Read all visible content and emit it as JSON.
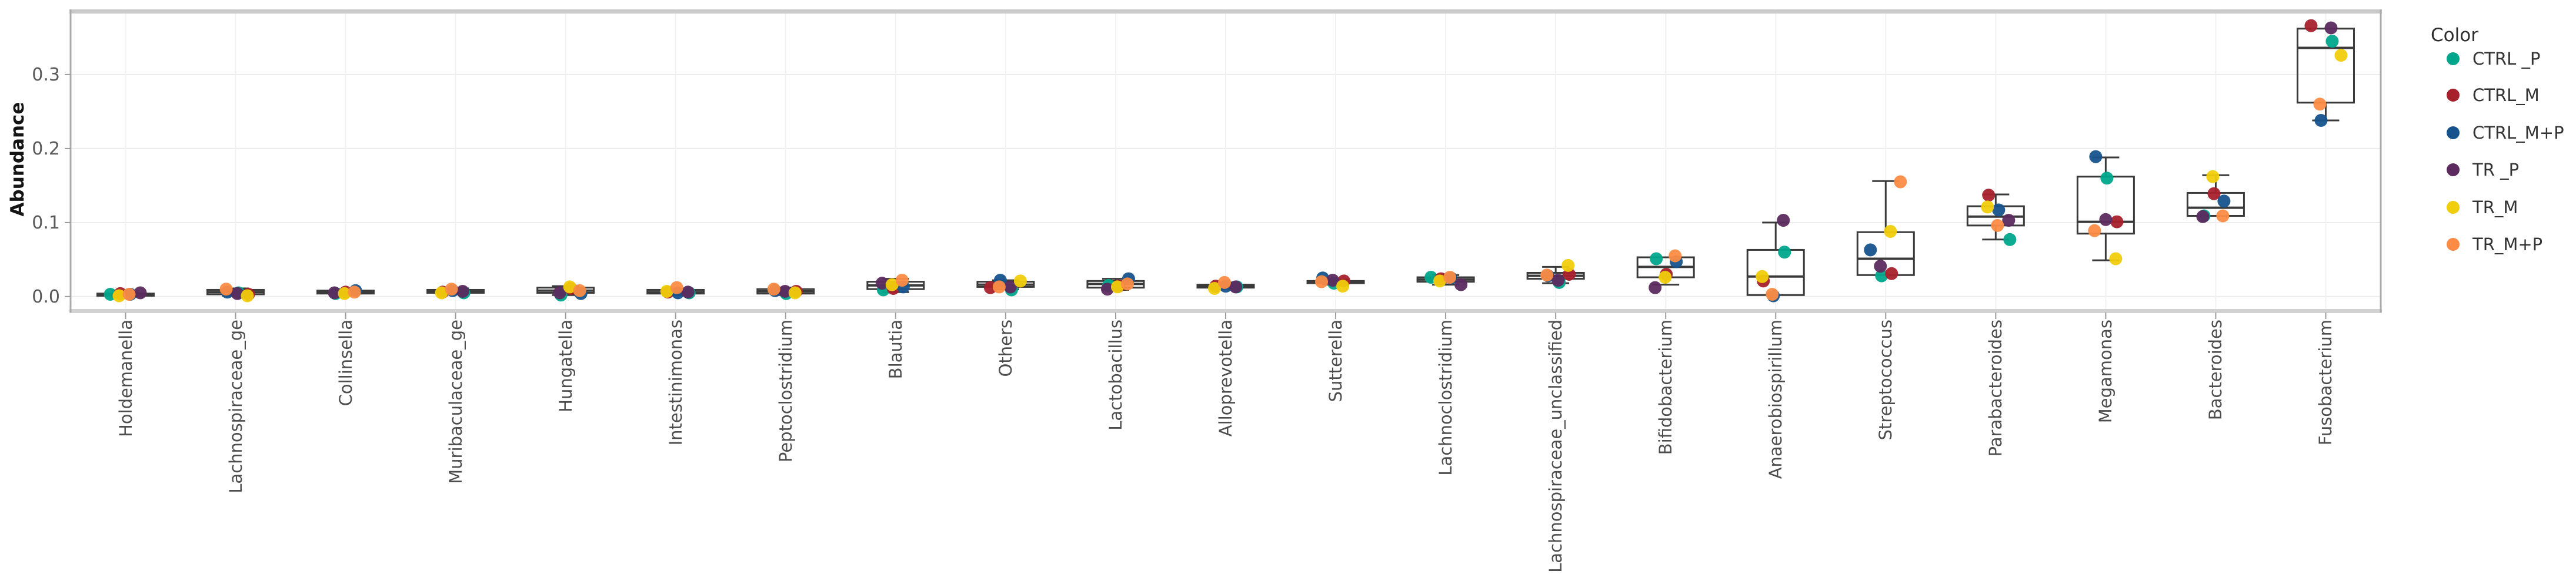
{
  "chart_data": {
    "type": "boxplot-jitter",
    "title": "",
    "ylabel": "Abundance",
    "xlabel": "",
    "grid": true,
    "legend_position": "right",
    "legend_title": "Color",
    "ylim": [
      -0.02,
      0.388
    ],
    "yticks": {
      "values": [
        0.0,
        0.1,
        0.2,
        0.3
      ],
      "labels": [
        "0.0",
        "0.1",
        "0.2",
        "0.3"
      ]
    },
    "groups": [
      {
        "label": "CTRL _P",
        "color": "#00A68C"
      },
      {
        "label": "CTRL_M",
        "color": "#A6212C"
      },
      {
        "label": "CTRL_M+P",
        "color": "#16538C"
      },
      {
        "label": "TR _P",
        "color": "#5C2A5F"
      },
      {
        "label": "TR_M",
        "color": "#F0CE0B"
      },
      {
        "label": "TR_M+P",
        "color": "#FC8C45"
      }
    ],
    "point_values_note": "values arrays are per group, in the order of groups[]",
    "categories": [
      {
        "name": "Holdemanella",
        "box": {
          "low": 0.0,
          "q1": 0.001,
          "med": 0.003,
          "q3": 0.004,
          "high": 0.006
        },
        "values": [
          0.003,
          0.004,
          0.003,
          0.005,
          0.001,
          0.003
        ]
      },
      {
        "name": "Lachnospiraceae_ge",
        "box": {
          "low": 0.001,
          "q1": 0.003,
          "med": 0.006,
          "q3": 0.009,
          "high": 0.011
        },
        "values": [
          0.005,
          0.003,
          0.006,
          0.004,
          0.001,
          0.01
        ]
      },
      {
        "name": "Collinsella",
        "box": {
          "low": 0.002,
          "q1": 0.004,
          "med": 0.006,
          "q3": 0.008,
          "high": 0.01
        },
        "values": [
          0.004,
          0.006,
          0.008,
          0.005,
          0.004,
          0.006
        ]
      },
      {
        "name": "Muribaculaceae_ge",
        "box": {
          "low": 0.003,
          "q1": 0.005,
          "med": 0.007,
          "q3": 0.009,
          "high": 0.011
        },
        "values": [
          0.005,
          0.006,
          0.008,
          0.007,
          0.005,
          0.01
        ]
      },
      {
        "name": "Hungatella",
        "box": {
          "low": 0.002,
          "q1": 0.005,
          "med": 0.008,
          "q3": 0.012,
          "high": 0.014
        },
        "values": [
          0.002,
          0.011,
          0.004,
          0.005,
          0.013,
          0.008
        ]
      },
      {
        "name": "Intestinimonas",
        "box": {
          "low": 0.002,
          "q1": 0.004,
          "med": 0.006,
          "q3": 0.009,
          "high": 0.01
        },
        "values": [
          0.005,
          0.006,
          0.005,
          0.006,
          0.007,
          0.012
        ]
      },
      {
        "name": "Peptoclostridium",
        "box": {
          "low": 0.002,
          "q1": 0.004,
          "med": 0.007,
          "q3": 0.01,
          "high": 0.012
        },
        "values": [
          0.004,
          0.007,
          0.008,
          0.007,
          0.005,
          0.01
        ]
      },
      {
        "name": "Blautia",
        "box": {
          "low": 0.006,
          "q1": 0.01,
          "med": 0.015,
          "q3": 0.02,
          "high": 0.024
        },
        "values": [
          0.009,
          0.011,
          0.013,
          0.018,
          0.016,
          0.022
        ]
      },
      {
        "name": "Others",
        "box": {
          "low": 0.01,
          "q1": 0.013,
          "med": 0.016,
          "q3": 0.02,
          "high": 0.022
        },
        "values": [
          0.009,
          0.012,
          0.022,
          0.013,
          0.021,
          0.013
        ]
      },
      {
        "name": "Lactobacillus",
        "box": {
          "low": 0.009,
          "q1": 0.012,
          "med": 0.017,
          "q3": 0.021,
          "high": 0.024
        },
        "values": [
          0.015,
          0.014,
          0.024,
          0.01,
          0.013,
          0.017
        ]
      },
      {
        "name": "Alloprevotella",
        "box": {
          "low": 0.01,
          "q1": 0.012,
          "med": 0.014,
          "q3": 0.016,
          "high": 0.019
        },
        "values": [
          0.013,
          0.014,
          0.014,
          0.013,
          0.011,
          0.019
        ]
      },
      {
        "name": "Sutterella",
        "box": {
          "low": 0.016,
          "q1": 0.018,
          "med": 0.02,
          "q3": 0.021,
          "high": 0.023
        },
        "values": [
          0.018,
          0.021,
          0.025,
          0.022,
          0.014,
          0.02
        ]
      },
      {
        "name": "Lachnoclostridium",
        "box": {
          "low": 0.016,
          "q1": 0.02,
          "med": 0.023,
          "q3": 0.026,
          "high": 0.029
        },
        "values": [
          0.026,
          0.024,
          0.025,
          0.016,
          0.021,
          0.026
        ]
      },
      {
        "name": "Lachnospiraceae_unclassified",
        "box": {
          "low": 0.018,
          "q1": 0.024,
          "med": 0.028,
          "q3": 0.032,
          "high": 0.04
        },
        "values": [
          0.019,
          0.03,
          0.028,
          0.022,
          0.042,
          0.029
        ]
      },
      {
        "name": "Bifidobacterium",
        "box": {
          "low": 0.016,
          "q1": 0.026,
          "med": 0.04,
          "q3": 0.053,
          "high": 0.053
        },
        "values": [
          0.051,
          0.03,
          0.047,
          0.012,
          0.026,
          0.055
        ]
      },
      {
        "name": "Anaerobiospirillum",
        "box": {
          "low": 0.002,
          "q1": 0.002,
          "med": 0.027,
          "q3": 0.063,
          "high": 0.1
        },
        "values": [
          0.06,
          0.021,
          0.001,
          0.103,
          0.027,
          0.003
        ]
      },
      {
        "name": "Streptococcus",
        "box": {
          "low": 0.029,
          "q1": 0.029,
          "med": 0.051,
          "q3": 0.087,
          "high": 0.156
        },
        "values": [
          0.028,
          0.031,
          0.063,
          0.041,
          0.088,
          0.155
        ]
      },
      {
        "name": "Parabacteroides",
        "box": {
          "low": 0.077,
          "q1": 0.096,
          "med": 0.108,
          "q3": 0.122,
          "high": 0.138
        },
        "values": [
          0.077,
          0.137,
          0.117,
          0.103,
          0.121,
          0.096
        ]
      },
      {
        "name": "Megamonas",
        "box": {
          "low": 0.049,
          "q1": 0.085,
          "med": 0.101,
          "q3": 0.162,
          "high": 0.188
        },
        "values": [
          0.16,
          0.101,
          0.189,
          0.104,
          0.051,
          0.089
        ]
      },
      {
        "name": "Bacteroides",
        "box": {
          "low": 0.109,
          "q1": 0.109,
          "med": 0.12,
          "q3": 0.14,
          "high": 0.164
        },
        "values": [
          0.109,
          0.139,
          0.129,
          0.108,
          0.162,
          0.109
        ]
      },
      {
        "name": "Fusobacterium",
        "box": {
          "low": 0.238,
          "q1": 0.262,
          "med": 0.336,
          "q3": 0.362,
          "high": 0.362
        },
        "values": [
          0.345,
          0.366,
          0.238,
          0.363,
          0.326,
          0.26
        ]
      }
    ],
    "colors": {
      "grid": "#ececec",
      "panel_band": "#c9c9c9",
      "panel_side": "#ababab",
      "box_stroke": "#3a3a3a",
      "tick": "#9b9b9b",
      "ytick_text": "#595959",
      "xlabel_text": "#4d4d4d"
    }
  }
}
